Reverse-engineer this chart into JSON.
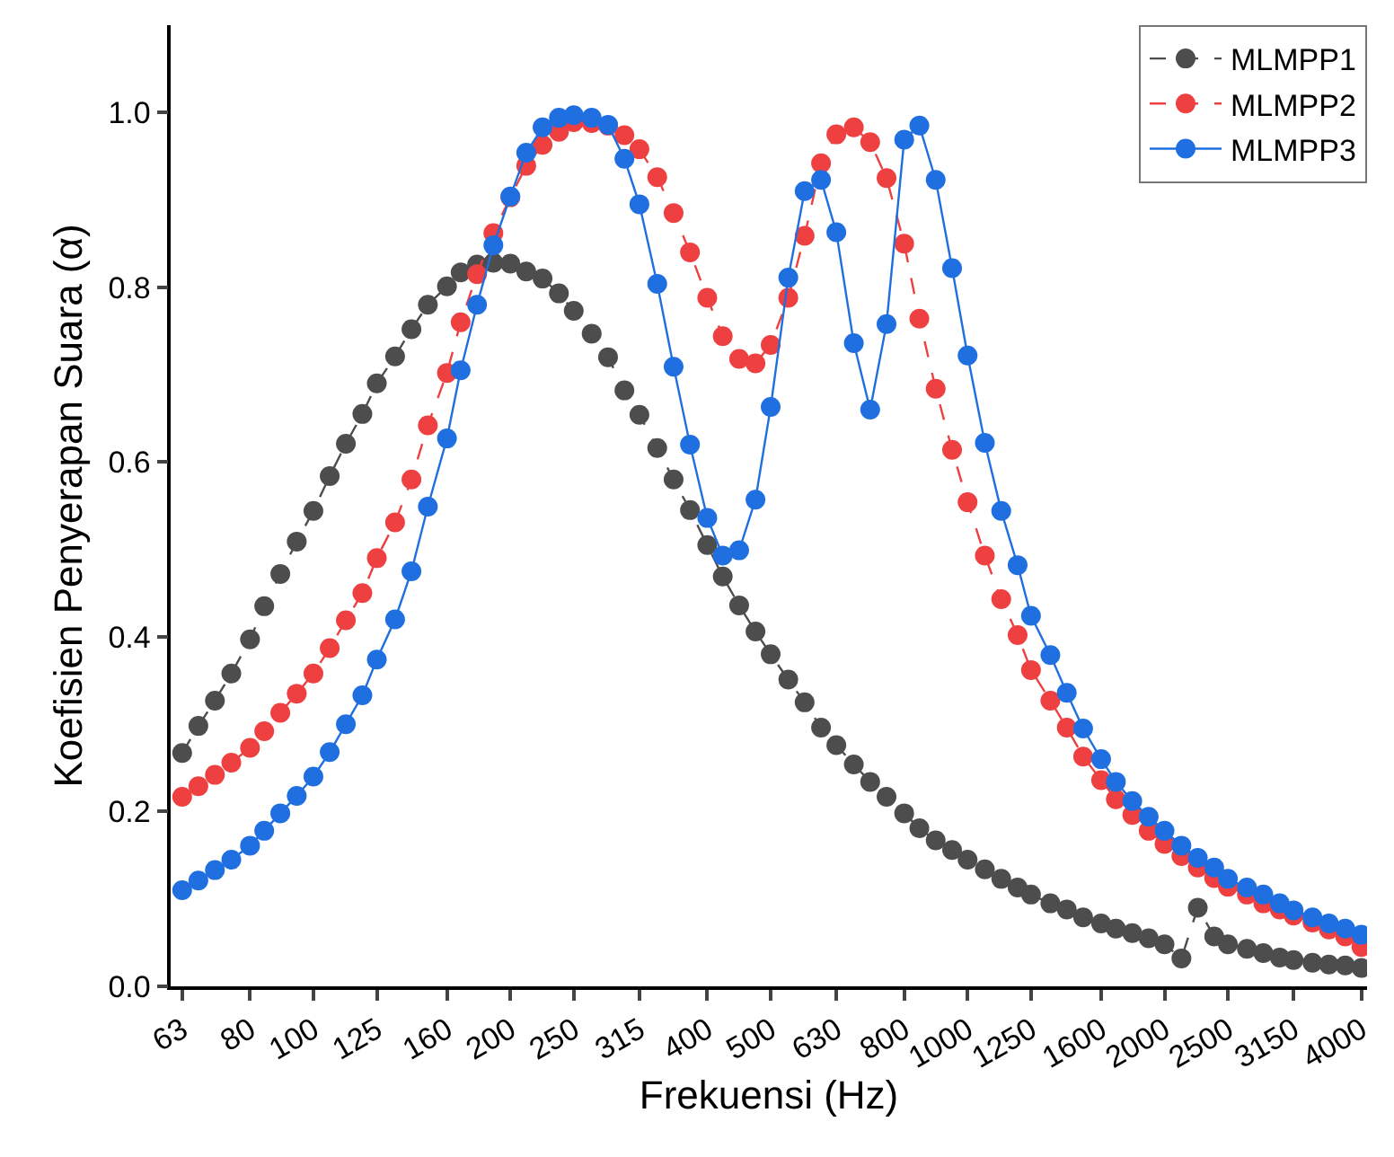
{
  "chart_data": {
    "type": "line",
    "xlabel": "Frekuensi (Hz)",
    "ylabel": "Koefisien Penyerapan Suara (α)",
    "log": "x",
    "xlim": [
      60.5,
      4080
    ],
    "ylim": [
      0,
      1.1
    ],
    "xticks": [
      63,
      80,
      100,
      125,
      160,
      200,
      250,
      315,
      400,
      500,
      630,
      800,
      1000,
      1250,
      1600,
      2000,
      2500,
      3150,
      4000
    ],
    "yticks": [
      {
        "value": 0,
        "label": "0.0"
      },
      {
        "value": 0.2,
        "label": "0.2"
      },
      {
        "value": 0.4,
        "label": "0.4"
      },
      {
        "value": 0.6,
        "label": "0.6"
      },
      {
        "value": 0.8,
        "label": "0.8"
      },
      {
        "value": 1.0,
        "label": "1.0"
      }
    ],
    "legend": "top right",
    "marker": "circle",
    "x": [
      63,
      66.7,
      70.7,
      74.9,
      80,
      84.1,
      89.0,
      94.3,
      100,
      105.9,
      112.1,
      118.8,
      125,
      133.3,
      141.2,
      149.6,
      160,
      167.9,
      177.9,
      188.4,
      200,
      211.5,
      224.0,
      237.3,
      250,
      266.3,
      282.1,
      298.8,
      315,
      335.4,
      355.3,
      376.4,
      400,
      422.4,
      447.5,
      474.0,
      500,
      532.0,
      563.5,
      597.0,
      630,
      670.0,
      709.7,
      751.8,
      800,
      843.8,
      893.8,
      946.9,
      1000,
      1062.6,
      1125.7,
      1192.5,
      1250,
      1338.3,
      1417.7,
      1501.9,
      1600,
      1685.4,
      1785.5,
      1891.5,
      2000,
      2122.7,
      2248.7,
      2382.2,
      2500,
      2673.4,
      2832.1,
      3000.2,
      3150,
      3366.9,
      3566.8,
      3778.5,
      4000
    ],
    "series": [
      {
        "name": "MLMPP1",
        "color": "#4d4d4d",
        "line_style": "dashed",
        "values": [
          0.267,
          0.298,
          0.327,
          0.358,
          0.397,
          0.435,
          0.472,
          0.509,
          0.544,
          0.584,
          0.621,
          0.655,
          0.69,
          0.721,
          0.752,
          0.78,
          0.801,
          0.817,
          0.826,
          0.828,
          0.827,
          0.818,
          0.81,
          0.793,
          0.773,
          0.747,
          0.72,
          0.682,
          0.654,
          0.616,
          0.58,
          0.545,
          0.505,
          0.469,
          0.436,
          0.406,
          0.38,
          0.351,
          0.325,
          0.296,
          0.276,
          0.254,
          0.234,
          0.217,
          0.198,
          0.181,
          0.167,
          0.156,
          0.145,
          0.134,
          0.123,
          0.113,
          0.105,
          0.095,
          0.088,
          0.079,
          0.072,
          0.066,
          0.061,
          0.055,
          0.048,
          0.032,
          0.09,
          0.057,
          0.048,
          0.043,
          0.038,
          0.033,
          0.03,
          0.027,
          0.025,
          0.024,
          0.021
        ]
      },
      {
        "name": "MLMPP2",
        "color": "#ee4040",
        "line_style": "dashed",
        "values": [
          0.217,
          0.229,
          0.242,
          0.256,
          0.273,
          0.292,
          0.313,
          0.335,
          0.358,
          0.387,
          0.419,
          0.45,
          0.49,
          0.531,
          0.58,
          0.642,
          0.702,
          0.76,
          0.815,
          0.862,
          0.903,
          0.939,
          0.963,
          0.978,
          0.989,
          0.988,
          0.985,
          0.974,
          0.958,
          0.926,
          0.885,
          0.84,
          0.788,
          0.744,
          0.718,
          0.713,
          0.734,
          0.788,
          0.859,
          0.942,
          0.975,
          0.983,
          0.966,
          0.925,
          0.85,
          0.764,
          0.684,
          0.614,
          0.554,
          0.493,
          0.443,
          0.402,
          0.362,
          0.327,
          0.296,
          0.263,
          0.236,
          0.214,
          0.196,
          0.178,
          0.163,
          0.149,
          0.136,
          0.124,
          0.114,
          0.105,
          0.095,
          0.088,
          0.081,
          0.073,
          0.065,
          0.057,
          0.045
        ]
      },
      {
        "name": "MLMPP3",
        "color": "#1f6fe0",
        "line_style": "solid",
        "values": [
          0.11,
          0.121,
          0.133,
          0.145,
          0.161,
          0.178,
          0.198,
          0.218,
          0.24,
          0.268,
          0.3,
          0.333,
          0.374,
          0.42,
          0.475,
          0.549,
          0.627,
          0.705,
          0.78,
          0.848,
          0.904,
          0.954,
          0.983,
          0.994,
          0.997,
          0.994,
          0.986,
          0.947,
          0.895,
          0.804,
          0.709,
          0.62,
          0.536,
          0.493,
          0.499,
          0.557,
          0.663,
          0.811,
          0.91,
          0.923,
          0.863,
          0.736,
          0.66,
          0.758,
          0.969,
          0.985,
          0.923,
          0.822,
          0.722,
          0.622,
          0.544,
          0.482,
          0.424,
          0.379,
          0.336,
          0.295,
          0.26,
          0.234,
          0.212,
          0.194,
          0.178,
          0.161,
          0.147,
          0.136,
          0.123,
          0.113,
          0.105,
          0.095,
          0.087,
          0.079,
          0.072,
          0.066,
          0.059
        ]
      }
    ]
  }
}
